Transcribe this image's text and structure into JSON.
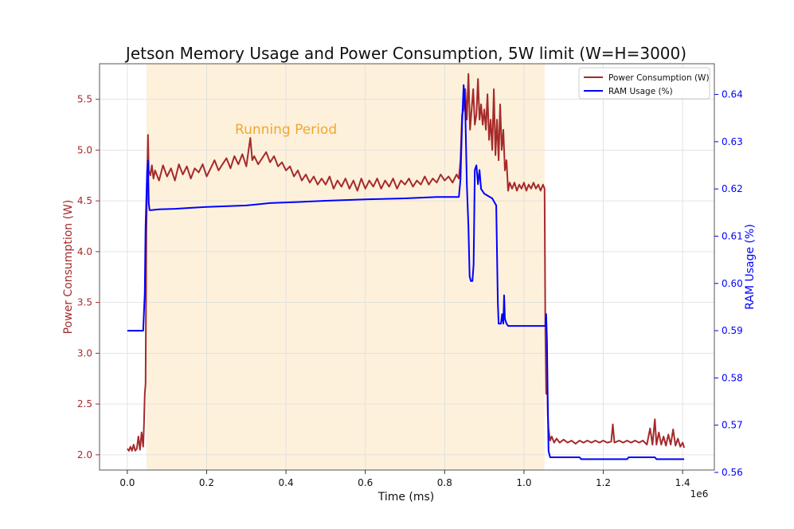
{
  "chart_data": {
    "type": "line",
    "title": "Jetson Memory Usage and Power Consumption, 5W limit (W=H=3000)",
    "xlabel": "Time (ms)",
    "x_exponent_label": "1e6",
    "ylabel_left": "Power Consumption (W)",
    "ylabel_right": "RAM Usage (%)",
    "xlim": [
      -70000,
      1480000
    ],
    "ylim_left": [
      1.85,
      5.85
    ],
    "ylim_right": [
      0.5605,
      0.6465
    ],
    "x_ticks": [
      0.0,
      0.2,
      0.4,
      0.6,
      0.8,
      1.0,
      1.2,
      1.4
    ],
    "x_tick_labels": [
      "0.0",
      "0.2",
      "0.4",
      "0.6",
      "0.8",
      "1.0",
      "1.2",
      "1.4"
    ],
    "y_left_ticks": [
      2.0,
      2.5,
      3.0,
      3.5,
      4.0,
      4.5,
      5.0,
      5.5
    ],
    "y_left_tick_labels": [
      "2.0",
      "2.5",
      "3.0",
      "3.5",
      "4.0",
      "4.5",
      "5.0",
      "5.5"
    ],
    "y_right_ticks": [
      0.56,
      0.57,
      0.58,
      0.59,
      0.6,
      0.61,
      0.62,
      0.63,
      0.64
    ],
    "y_right_tick_labels": [
      "0.56",
      "0.57",
      "0.58",
      "0.59",
      "0.60",
      "0.61",
      "0.62",
      "0.63",
      "0.64"
    ],
    "grid": true,
    "legend_position": "top-right",
    "shaded_region": {
      "label": "Running Period",
      "x_start": 48000,
      "x_end": 1052000,
      "color": "#fdf1dc",
      "label_color": "#f0a830"
    },
    "series": [
      {
        "name": "Power Consumption (W)",
        "axis": "left",
        "color": "#a52a2a",
        "points": [
          [
            0,
            2.06
          ],
          [
            4000,
            2.04
          ],
          [
            8000,
            2.08
          ],
          [
            12000,
            2.04
          ],
          [
            16000,
            2.1
          ],
          [
            20000,
            2.04
          ],
          [
            24000,
            2.06
          ],
          [
            28000,
            2.18
          ],
          [
            32000,
            2.05
          ],
          [
            36000,
            2.22
          ],
          [
            40000,
            2.08
          ],
          [
            42000,
            2.3
          ],
          [
            44000,
            2.6
          ],
          [
            46000,
            2.7
          ],
          [
            48000,
            4.2
          ],
          [
            50000,
            4.7
          ],
          [
            52000,
            5.15
          ],
          [
            54000,
            4.8
          ],
          [
            58000,
            4.75
          ],
          [
            62000,
            4.85
          ],
          [
            66000,
            4.72
          ],
          [
            70000,
            4.8
          ],
          [
            80000,
            4.7
          ],
          [
            90000,
            4.85
          ],
          [
            100000,
            4.74
          ],
          [
            110000,
            4.82
          ],
          [
            120000,
            4.7
          ],
          [
            130000,
            4.86
          ],
          [
            140000,
            4.76
          ],
          [
            150000,
            4.84
          ],
          [
            160000,
            4.72
          ],
          [
            170000,
            4.82
          ],
          [
            180000,
            4.78
          ],
          [
            190000,
            4.86
          ],
          [
            200000,
            4.74
          ],
          [
            210000,
            4.82
          ],
          [
            220000,
            4.9
          ],
          [
            230000,
            4.8
          ],
          [
            240000,
            4.86
          ],
          [
            250000,
            4.92
          ],
          [
            260000,
            4.82
          ],
          [
            270000,
            4.94
          ],
          [
            280000,
            4.86
          ],
          [
            290000,
            4.96
          ],
          [
            300000,
            4.84
          ],
          [
            310000,
            5.12
          ],
          [
            315000,
            4.9
          ],
          [
            320000,
            4.94
          ],
          [
            330000,
            4.86
          ],
          [
            340000,
            4.92
          ],
          [
            350000,
            4.98
          ],
          [
            360000,
            4.88
          ],
          [
            370000,
            4.94
          ],
          [
            380000,
            4.84
          ],
          [
            390000,
            4.88
          ],
          [
            400000,
            4.8
          ],
          [
            410000,
            4.84
          ],
          [
            420000,
            4.74
          ],
          [
            430000,
            4.8
          ],
          [
            440000,
            4.7
          ],
          [
            450000,
            4.76
          ],
          [
            460000,
            4.68
          ],
          [
            470000,
            4.74
          ],
          [
            480000,
            4.66
          ],
          [
            490000,
            4.72
          ],
          [
            500000,
            4.66
          ],
          [
            510000,
            4.74
          ],
          [
            520000,
            4.62
          ],
          [
            530000,
            4.7
          ],
          [
            540000,
            4.64
          ],
          [
            550000,
            4.72
          ],
          [
            560000,
            4.62
          ],
          [
            570000,
            4.7
          ],
          [
            580000,
            4.6
          ],
          [
            590000,
            4.72
          ],
          [
            600000,
            4.62
          ],
          [
            610000,
            4.7
          ],
          [
            620000,
            4.64
          ],
          [
            630000,
            4.72
          ],
          [
            640000,
            4.62
          ],
          [
            650000,
            4.7
          ],
          [
            660000,
            4.64
          ],
          [
            670000,
            4.72
          ],
          [
            680000,
            4.62
          ],
          [
            690000,
            4.7
          ],
          [
            700000,
            4.66
          ],
          [
            710000,
            4.72
          ],
          [
            720000,
            4.64
          ],
          [
            730000,
            4.7
          ],
          [
            740000,
            4.66
          ],
          [
            750000,
            4.74
          ],
          [
            760000,
            4.66
          ],
          [
            770000,
            4.72
          ],
          [
            780000,
            4.68
          ],
          [
            790000,
            4.76
          ],
          [
            800000,
            4.7
          ],
          [
            810000,
            4.74
          ],
          [
            820000,
            4.68
          ],
          [
            830000,
            4.76
          ],
          [
            836000,
            4.72
          ],
          [
            840000,
            4.9
          ],
          [
            844000,
            5.35
          ],
          [
            848000,
            5.4
          ],
          [
            852000,
            5.6
          ],
          [
            856000,
            5.3
          ],
          [
            860000,
            5.75
          ],
          [
            864000,
            5.2
          ],
          [
            868000,
            5.4
          ],
          [
            872000,
            5.6
          ],
          [
            876000,
            5.25
          ],
          [
            880000,
            5.35
          ],
          [
            884000,
            5.7
          ],
          [
            888000,
            5.3
          ],
          [
            892000,
            5.45
          ],
          [
            896000,
            5.25
          ],
          [
            900000,
            5.4
          ],
          [
            904000,
            5.2
          ],
          [
            908000,
            5.55
          ],
          [
            912000,
            5.1
          ],
          [
            916000,
            5.3
          ],
          [
            920000,
            5.0
          ],
          [
            924000,
            5.6
          ],
          [
            928000,
            4.95
          ],
          [
            932000,
            5.3
          ],
          [
            936000,
            4.9
          ],
          [
            940000,
            5.45
          ],
          [
            944000,
            5.0
          ],
          [
            948000,
            5.2
          ],
          [
            952000,
            4.8
          ],
          [
            956000,
            4.9
          ],
          [
            960000,
            4.6
          ],
          [
            964000,
            4.68
          ],
          [
            970000,
            4.62
          ],
          [
            976000,
            4.68
          ],
          [
            982000,
            4.6
          ],
          [
            988000,
            4.66
          ],
          [
            994000,
            4.62
          ],
          [
            1000000,
            4.68
          ],
          [
            1006000,
            4.6
          ],
          [
            1012000,
            4.66
          ],
          [
            1018000,
            4.62
          ],
          [
            1024000,
            4.68
          ],
          [
            1030000,
            4.62
          ],
          [
            1036000,
            4.66
          ],
          [
            1042000,
            4.6
          ],
          [
            1048000,
            4.66
          ],
          [
            1052000,
            4.62
          ],
          [
            1054000,
            3.2
          ],
          [
            1056000,
            2.6
          ],
          [
            1058000,
            3.0
          ],
          [
            1060000,
            2.4
          ],
          [
            1062000,
            2.25
          ],
          [
            1066000,
            2.14
          ],
          [
            1070000,
            2.18
          ],
          [
            1076000,
            2.12
          ],
          [
            1082000,
            2.16
          ],
          [
            1090000,
            2.12
          ],
          [
            1100000,
            2.15
          ],
          [
            1110000,
            2.12
          ],
          [
            1120000,
            2.14
          ],
          [
            1130000,
            2.11
          ],
          [
            1140000,
            2.14
          ],
          [
            1150000,
            2.12
          ],
          [
            1160000,
            2.14
          ],
          [
            1170000,
            2.12
          ],
          [
            1180000,
            2.14
          ],
          [
            1190000,
            2.12
          ],
          [
            1200000,
            2.14
          ],
          [
            1210000,
            2.12
          ],
          [
            1220000,
            2.13
          ],
          [
            1224000,
            2.3
          ],
          [
            1228000,
            2.12
          ],
          [
            1240000,
            2.14
          ],
          [
            1250000,
            2.12
          ],
          [
            1260000,
            2.14
          ],
          [
            1270000,
            2.12
          ],
          [
            1280000,
            2.14
          ],
          [
            1290000,
            2.12
          ],
          [
            1300000,
            2.14
          ],
          [
            1310000,
            2.1
          ],
          [
            1318000,
            2.26
          ],
          [
            1324000,
            2.1
          ],
          [
            1330000,
            2.35
          ],
          [
            1334000,
            2.1
          ],
          [
            1340000,
            2.22
          ],
          [
            1346000,
            2.1
          ],
          [
            1352000,
            2.18
          ],
          [
            1358000,
            2.09
          ],
          [
            1364000,
            2.2
          ],
          [
            1370000,
            2.1
          ],
          [
            1376000,
            2.25
          ],
          [
            1382000,
            2.09
          ],
          [
            1388000,
            2.16
          ],
          [
            1394000,
            2.08
          ],
          [
            1400000,
            2.12
          ],
          [
            1404000,
            2.07
          ]
        ]
      },
      {
        "name": "RAM Usage (%)",
        "axis": "right",
        "color": "#0000ff",
        "points": [
          [
            0,
            0.59
          ],
          [
            40000,
            0.59
          ],
          [
            44000,
            0.598
          ],
          [
            46000,
            0.612
          ],
          [
            48000,
            0.618
          ],
          [
            50000,
            0.624
          ],
          [
            52000,
            0.626
          ],
          [
            54000,
            0.617
          ],
          [
            56000,
            0.6155
          ],
          [
            60000,
            0.6155
          ],
          [
            80000,
            0.6157
          ],
          [
            120000,
            0.6158
          ],
          [
            160000,
            0.616
          ],
          [
            200000,
            0.6162
          ],
          [
            300000,
            0.6165
          ],
          [
            360000,
            0.617
          ],
          [
            420000,
            0.6172
          ],
          [
            500000,
            0.6175
          ],
          [
            600000,
            0.6178
          ],
          [
            700000,
            0.618
          ],
          [
            780000,
            0.6183
          ],
          [
            832000,
            0.6183
          ],
          [
            836000,
            0.6183
          ],
          [
            840000,
            0.622
          ],
          [
            844000,
            0.634
          ],
          [
            848000,
            0.642
          ],
          [
            852000,
            0.637
          ],
          [
            856000,
            0.621
          ],
          [
            860000,
            0.612
          ],
          [
            863000,
            0.6015
          ],
          [
            866000,
            0.6005
          ],
          [
            870000,
            0.6005
          ],
          [
            873000,
            0.604
          ],
          [
            876000,
            0.624
          ],
          [
            880000,
            0.625
          ],
          [
            884000,
            0.621
          ],
          [
            888000,
            0.624
          ],
          [
            892000,
            0.62
          ],
          [
            900000,
            0.619
          ],
          [
            920000,
            0.618
          ],
          [
            930000,
            0.6165
          ],
          [
            934000,
            0.596
          ],
          [
            936000,
            0.5915
          ],
          [
            942000,
            0.5915
          ],
          [
            945000,
            0.5935
          ],
          [
            948000,
            0.5915
          ],
          [
            950000,
            0.5975
          ],
          [
            952000,
            0.5925
          ],
          [
            956000,
            0.5915
          ],
          [
            960000,
            0.591
          ],
          [
            980000,
            0.591
          ],
          [
            1000000,
            0.591
          ],
          [
            1040000,
            0.591
          ],
          [
            1054000,
            0.591
          ],
          [
            1056000,
            0.5935
          ],
          [
            1058000,
            0.588
          ],
          [
            1060000,
            0.575
          ],
          [
            1062000,
            0.5645
          ],
          [
            1066000,
            0.5632
          ],
          [
            1100000,
            0.5632
          ],
          [
            1140000,
            0.5632
          ],
          [
            1144000,
            0.5628
          ],
          [
            1200000,
            0.5628
          ],
          [
            1260000,
            0.5628
          ],
          [
            1264000,
            0.5632
          ],
          [
            1330000,
            0.5632
          ],
          [
            1334000,
            0.5628
          ],
          [
            1404000,
            0.5628
          ]
        ]
      }
    ]
  }
}
